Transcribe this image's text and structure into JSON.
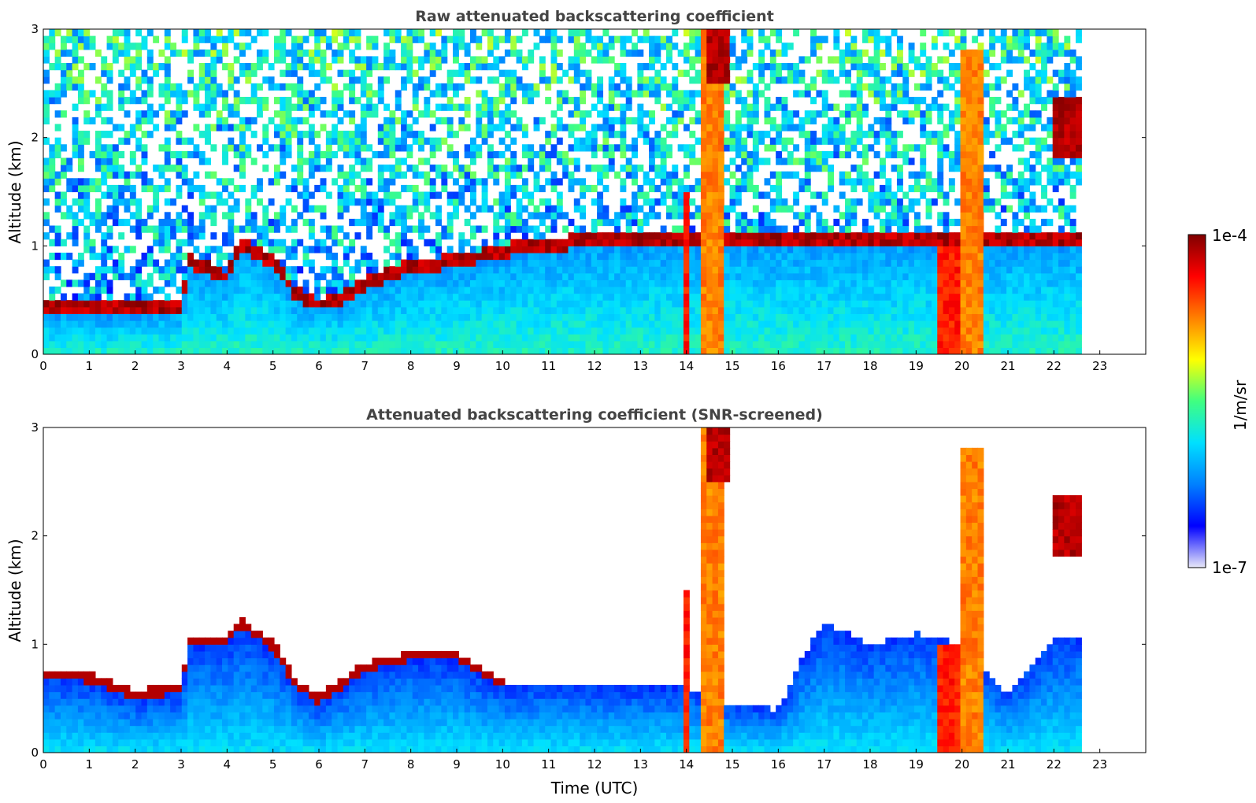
{
  "colors": {
    "colormap": [
      "#e8e8f8",
      "#0000ff",
      "#0080ff",
      "#00e0ff",
      "#40ff80",
      "#ffff00",
      "#ff8000",
      "#ff0000",
      "#800000"
    ],
    "background": "#ffffff",
    "axes": "#000000",
    "title": "#444444"
  },
  "chart_data": [
    {
      "type": "heatmap",
      "title": "Raw attenuated backscattering coefficient",
      "xlabel": "",
      "ylabel": "Altitude (km)",
      "xlim": [
        0,
        24
      ],
      "ylim": [
        0,
        3
      ],
      "x_ticks": [
        "0",
        "1",
        "2",
        "3",
        "4",
        "5",
        "6",
        "7",
        "8",
        "9",
        "10",
        "11",
        "12",
        "13",
        "14",
        "15",
        "16",
        "17",
        "18",
        "19",
        "20",
        "21",
        "22",
        "23"
      ],
      "y_ticks": [
        "0",
        "1",
        "2",
        "3"
      ],
      "data_end_time": 22.6,
      "boundary_layer_top_km": [
        [
          0,
          0.35
        ],
        [
          1,
          0.35
        ],
        [
          2,
          0.35
        ],
        [
          3,
          0.4
        ],
        [
          3.2,
          0.8
        ],
        [
          4,
          0.65
        ],
        [
          4.3,
          0.95
        ],
        [
          5,
          0.8
        ],
        [
          5.5,
          0.5
        ],
        [
          6,
          0.4
        ],
        [
          6.5,
          0.45
        ],
        [
          7,
          0.6
        ],
        [
          8,
          0.75
        ],
        [
          9,
          0.8
        ],
        [
          10,
          0.9
        ],
        [
          11,
          0.95
        ],
        [
          12,
          1.0
        ],
        [
          13,
          1.0
        ],
        [
          14,
          1.0
        ]
      ],
      "cloud_features": [
        {
          "x0": 13.9,
          "x1": 14.1,
          "y0": 0,
          "y1": 1.5,
          "level": 0.85
        },
        {
          "x0": 14.3,
          "x1": 14.8,
          "y0": 0,
          "y1": 3,
          "level": 0.75
        },
        {
          "x0": 14.4,
          "x1": 14.9,
          "y0": 2.5,
          "y1": 3,
          "level": 0.95
        },
        {
          "x0": 19.4,
          "x1": 20.0,
          "y0": 0,
          "y1": 1.0,
          "level": 0.85
        },
        {
          "x0": 20.0,
          "x1": 20.5,
          "y0": 0,
          "y1": 2.8,
          "level": 0.75
        },
        {
          "x0": 22.0,
          "x1": 22.6,
          "y0": 1.8,
          "y1": 2.4,
          "level": 0.95
        }
      ]
    },
    {
      "type": "heatmap",
      "title": "Attenuated backscattering coefficient (SNR-screened)",
      "xlabel": "Time (UTC)",
      "ylabel": "Altitude (km)",
      "xlim": [
        0,
        24
      ],
      "ylim": [
        0,
        3
      ],
      "x_ticks": [
        "0",
        "1",
        "2",
        "3",
        "4",
        "5",
        "6",
        "7",
        "8",
        "9",
        "10",
        "11",
        "12",
        "13",
        "14",
        "15",
        "16",
        "17",
        "18",
        "19",
        "20",
        "21",
        "22",
        "23"
      ],
      "y_ticks": [
        "0",
        "1",
        "2",
        "3"
      ],
      "data_end_time": 22.6,
      "screened_top_km": [
        [
          0,
          0.7
        ],
        [
          1,
          0.65
        ],
        [
          2,
          0.5
        ],
        [
          3,
          0.55
        ],
        [
          3.2,
          1.0
        ],
        [
          4,
          1.0
        ],
        [
          4.3,
          1.15
        ],
        [
          5,
          0.95
        ],
        [
          5.5,
          0.6
        ],
        [
          6,
          0.45
        ],
        [
          6.5,
          0.6
        ],
        [
          7,
          0.75
        ],
        [
          8,
          0.85
        ],
        [
          9,
          0.85
        ],
        [
          10,
          0.6
        ],
        [
          11,
          0.65
        ],
        [
          12,
          0.6
        ],
        [
          13,
          0.6
        ],
        [
          14,
          0.6
        ],
        [
          15,
          0.45
        ],
        [
          16,
          0.4
        ],
        [
          16.5,
          0.85
        ],
        [
          17,
          1.2
        ],
        [
          18,
          1.0
        ],
        [
          19,
          1.1
        ],
        [
          20,
          1.0
        ],
        [
          21,
          0.55
        ],
        [
          22,
          1.05
        ],
        [
          22.6,
          1.05
        ]
      ]
    }
  ],
  "colorbar": {
    "label": "1/m/sr",
    "max_label": "1e-4",
    "min_label": "1e-7"
  }
}
